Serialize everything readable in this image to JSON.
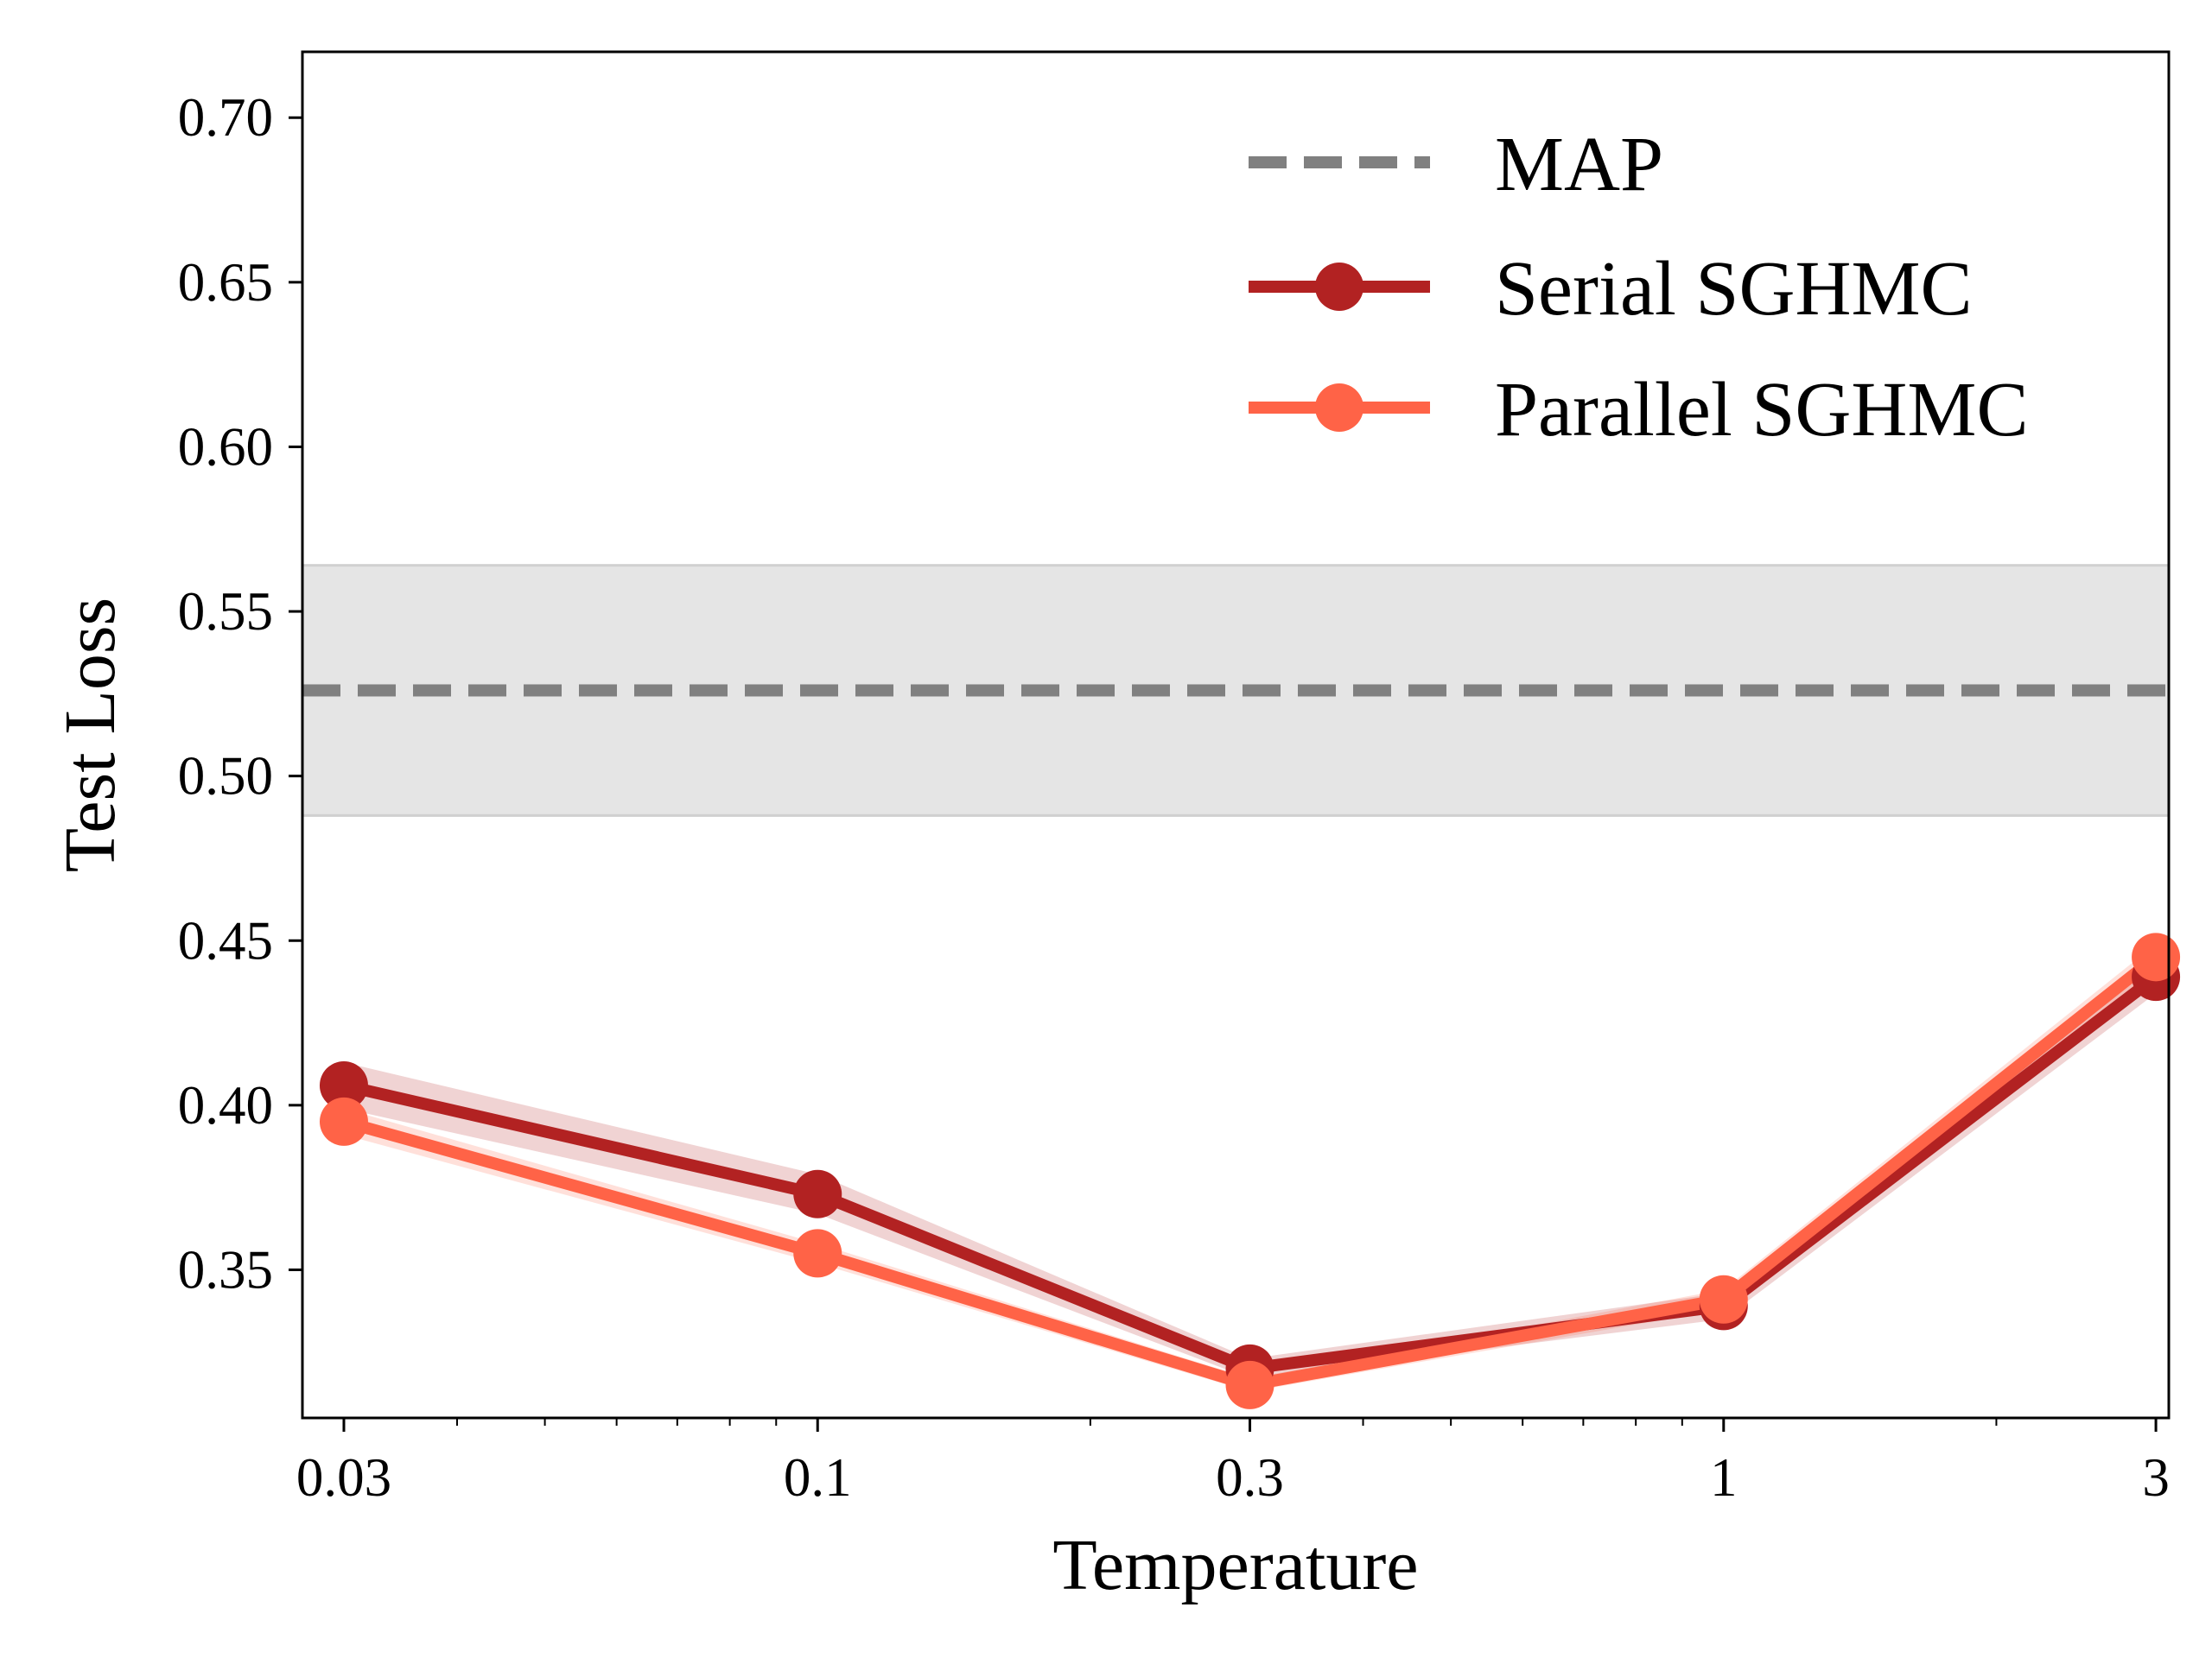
{
  "chart_data": {
    "type": "line",
    "xlabel": "Temperature",
    "ylabel": "Test Loss",
    "xscale": "log",
    "xlim": [
      0.027,
      3.1
    ],
    "ylim": [
      0.305,
      0.72
    ],
    "x_ticks": [
      0.03,
      0.1,
      0.3,
      1,
      3
    ],
    "x_tick_labels": [
      "0.03",
      "0.1",
      "0.3",
      "1",
      "3"
    ],
    "y_ticks": [
      0.35,
      0.4,
      0.45,
      0.5,
      0.55,
      0.6,
      0.65,
      0.7
    ],
    "y_tick_labels": [
      "0.35",
      "0.40",
      "0.45",
      "0.50",
      "0.55",
      "0.60",
      "0.65",
      "0.70"
    ],
    "grid": false,
    "legend_position": "top-right",
    "reference_line": {
      "name": "MAP",
      "value": 0.526,
      "band": [
        0.488,
        0.564
      ],
      "color": "#808080",
      "band_color": "#e5e5e5",
      "style": "dashed"
    },
    "series": [
      {
        "name": "Serial SGHMC",
        "color": "#b22222",
        "x": [
          0.03,
          0.1,
          0.3,
          1,
          3
        ],
        "y": [
          0.406,
          0.373,
          0.32,
          0.339,
          0.439
        ],
        "band_halfwidth": [
          0.007,
          0.006,
          0.003,
          0.004,
          0.005
        ]
      },
      {
        "name": "Parallel SGHMC",
        "color": "#ff6347",
        "x": [
          0.03,
          0.1,
          0.3,
          1,
          3
        ],
        "y": [
          0.395,
          0.355,
          0.315,
          0.341,
          0.445
        ],
        "band_halfwidth": [
          0.004,
          0.003,
          0.002,
          0.003,
          0.004
        ]
      }
    ]
  }
}
